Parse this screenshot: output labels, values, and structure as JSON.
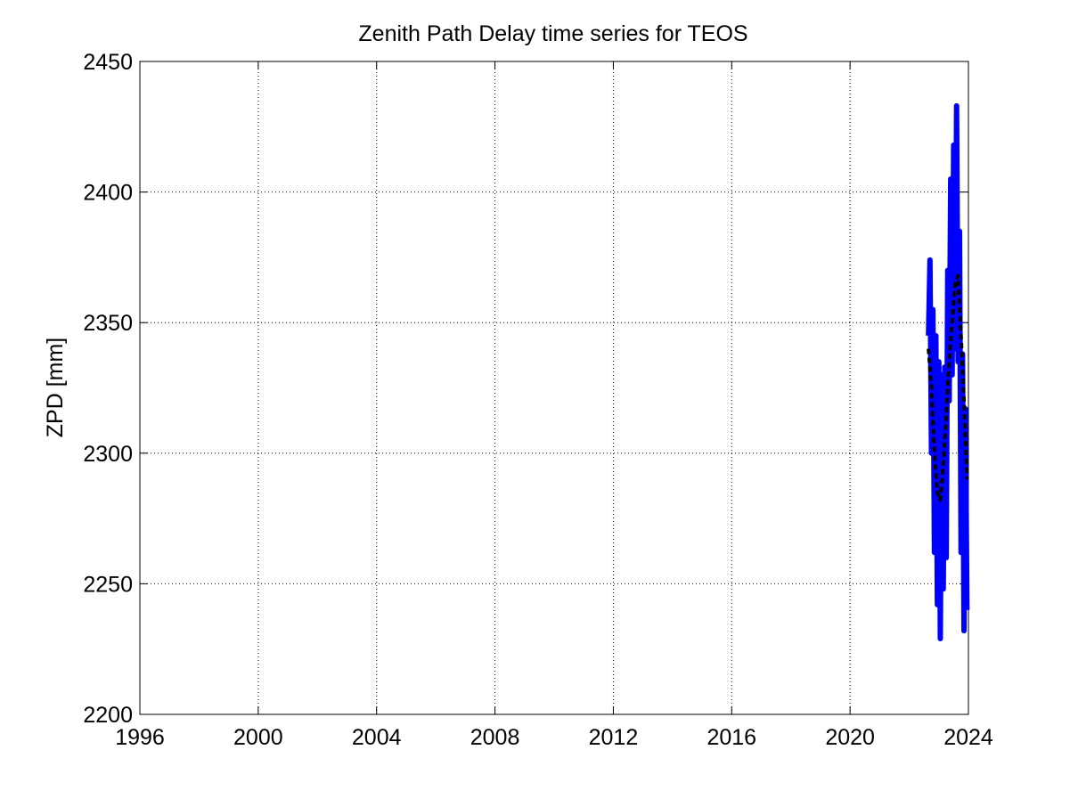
{
  "chart_data": {
    "type": "line",
    "title": "Zenith Path Delay time series for TEOS",
    "y_label": "ZPD [mm]",
    "xlim": [
      1996,
      2024
    ],
    "xticks": [
      1996,
      2000,
      2004,
      2008,
      2012,
      2016,
      2020,
      2024
    ],
    "ylim": [
      2200,
      2450
    ],
    "yticks": [
      2200,
      2250,
      2300,
      2350,
      2400,
      2450
    ],
    "grid": true,
    "series": [
      {
        "color": "#0000ff",
        "style": "solid",
        "x": [
          2022.65,
          2022.7,
          2022.75,
          2022.8,
          2022.85,
          2022.9,
          2022.95,
          2023.0,
          2023.05,
          2023.1,
          2023.15,
          2023.2,
          2023.25,
          2023.3,
          2023.35,
          2023.4,
          2023.45,
          2023.5,
          2023.55,
          2023.6,
          2023.65,
          2023.7,
          2023.75,
          2023.8,
          2023.85,
          2023.9,
          2023.95
        ],
        "values": [
          2345,
          2374,
          2300,
          2355,
          2262,
          2345,
          2242,
          2335,
          2229,
          2330,
          2248,
          2333,
          2260,
          2370,
          2320,
          2405,
          2330,
          2418,
          2340,
          2433,
          2335,
          2385,
          2262,
          2338,
          2232,
          2317,
          2240
        ]
      },
      {
        "color": "#000000",
        "style": "dashed",
        "x": [
          2022.65,
          2022.75,
          2022.85,
          2022.95,
          2023.05,
          2023.15,
          2023.25,
          2023.35,
          2023.45,
          2023.55,
          2023.65,
          2023.75,
          2023.85,
          2023.95
        ],
        "values": [
          2340,
          2325,
          2300,
          2285,
          2282,
          2295,
          2315,
          2335,
          2350,
          2365,
          2368,
          2345,
          2320,
          2290
        ]
      }
    ]
  }
}
